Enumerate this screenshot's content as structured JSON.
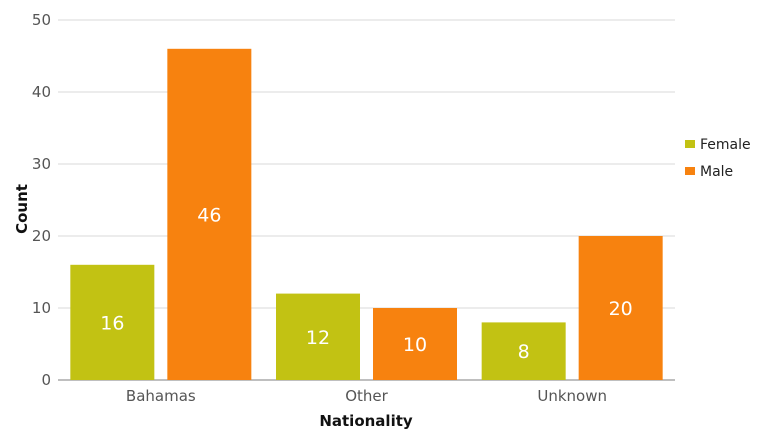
{
  "chart_data": {
    "type": "bar",
    "categories": [
      "Bahamas",
      "Other",
      "Unknown"
    ],
    "series": [
      {
        "name": "Female",
        "values": [
          16,
          12,
          8
        ],
        "color": "#c2c213"
      },
      {
        "name": "Male",
        "values": [
          46,
          10,
          20
        ],
        "color": "#f7820f"
      }
    ],
    "xlabel": "Nationality",
    "ylabel": "Count",
    "ylim": [
      0,
      50
    ],
    "yticks": [
      0,
      10,
      20,
      30,
      40,
      50
    ],
    "grid": true,
    "legend": "right",
    "data_labels": true
  }
}
